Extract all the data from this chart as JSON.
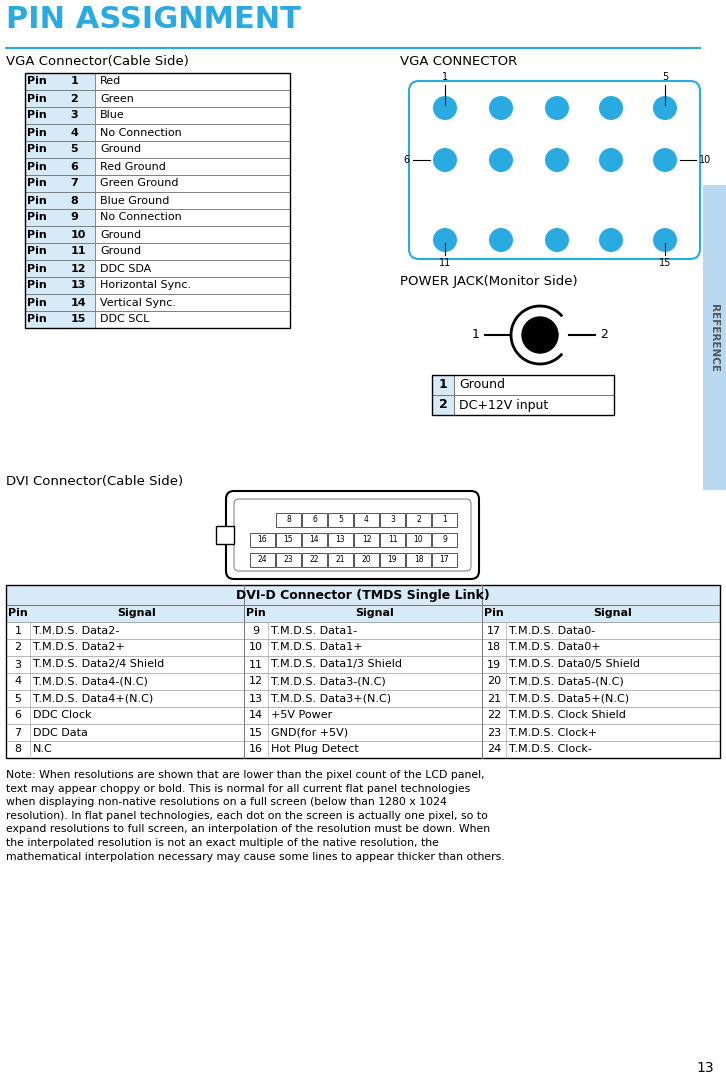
{
  "title": "PIN ASSIGNMENT",
  "title_color": "#29ABE2",
  "separator_color": "#29ABE2",
  "bg_color": "#FFFFFF",
  "reference_text": "REFERENCE",
  "reference_bg": "#B8D9F0",
  "page_number": "13",
  "vga_table_title": "VGA Connector(Cable Side)",
  "vga_pins": [
    [
      "Pin",
      "1",
      "Red"
    ],
    [
      "Pin",
      "2",
      "Green"
    ],
    [
      "Pin",
      "3",
      "Blue"
    ],
    [
      "Pin",
      "4",
      "No Connection"
    ],
    [
      "Pin",
      "5",
      "Ground"
    ],
    [
      "Pin",
      "6",
      "Red Ground"
    ],
    [
      "Pin",
      "7",
      "Green Ground"
    ],
    [
      "Pin",
      "8",
      "Blue Ground"
    ],
    [
      "Pin",
      "9",
      "No Connection"
    ],
    [
      "Pin",
      "10",
      "Ground"
    ],
    [
      "Pin",
      "11",
      "Ground"
    ],
    [
      "Pin",
      "12",
      "DDC SDA"
    ],
    [
      "Pin",
      "13",
      "Horizontal Sync."
    ],
    [
      "Pin",
      "14",
      "Vertical Sync."
    ],
    [
      "Pin",
      "15",
      "DDC SCL"
    ]
  ],
  "vga_cell_bg": "#D6EAF8",
  "vga_connector_title": "VGA CONNECTOR",
  "vga_dot_color": "#29ABE2",
  "vga_outline_color": "#29ABE2",
  "power_jack_title": "POWER JACK(Monitor Side)",
  "power_jack_table": [
    [
      "1",
      "Ground"
    ],
    [
      "2",
      "DC+12V input"
    ]
  ],
  "power_cell_bg": "#D6EAF8",
  "dvi_title": "DVI Connector(Cable Side)",
  "dvi_table_title": "DVI-D Connector (TMDS Single Link)",
  "dvi_header_bg": "#D6EAF8",
  "dvi_col1_pins": [
    [
      "1",
      "T.M.D.S. Data2-"
    ],
    [
      "2",
      "T.M.D.S. Data2+"
    ],
    [
      "3",
      "T.M.D.S. Data2/4 Shield"
    ],
    [
      "4",
      "T.M.D.S. Data4-(N.C)"
    ],
    [
      "5",
      "T.M.D.S. Data4+(N.C)"
    ],
    [
      "6",
      "DDC Clock"
    ],
    [
      "7",
      "DDC Data"
    ],
    [
      "8",
      "N.C"
    ]
  ],
  "dvi_col2_pins": [
    [
      "9",
      "T.M.D.S. Data1-"
    ],
    [
      "10",
      "T.M.D.S. Data1+"
    ],
    [
      "11",
      "T.M.D.S. Data1/3 Shield"
    ],
    [
      "12",
      "T.M.D.S. Data3-(N.C)"
    ],
    [
      "13",
      "T.M.D.S. Data3+(N.C)"
    ],
    [
      "14",
      "+5V Power"
    ],
    [
      "15",
      "GND(for +5V)"
    ],
    [
      "16",
      "Hot Plug Detect"
    ]
  ],
  "dvi_col3_pins": [
    [
      "17",
      "T.M.D.S. Data0-"
    ],
    [
      "18",
      "T.M.D.S. Data0+"
    ],
    [
      "19",
      "T.M.D.S. Data0/5 Shield"
    ],
    [
      "20",
      "T.M.D.S. Data5-(N.C)"
    ],
    [
      "21",
      "T.M.D.S. Data5+(N.C)"
    ],
    [
      "22",
      "T.M.D.S. Clock Shield"
    ],
    [
      "23",
      "T.M.D.S. Clock+"
    ],
    [
      "24",
      "T.M.D.S. Clock-"
    ]
  ],
  "note_text": "Note: When resolutions are shown that are lower than the pixel count of the LCD panel,\ntext may appear choppy or bold. This is normal for all current flat panel technologies\nwhen displaying non-native resolutions on a full screen (below than 1280 x 1024\nresolution). In flat panel technologies, each dot on the screen is actually one pixel, so to\nexpand resolutions to full screen, an interpolation of the resolution must be down. When\nthe interpolated resolution is not an exact multiple of the native resolution, the\nmathematical interpolation necessary may cause some lines to appear thicker than others."
}
